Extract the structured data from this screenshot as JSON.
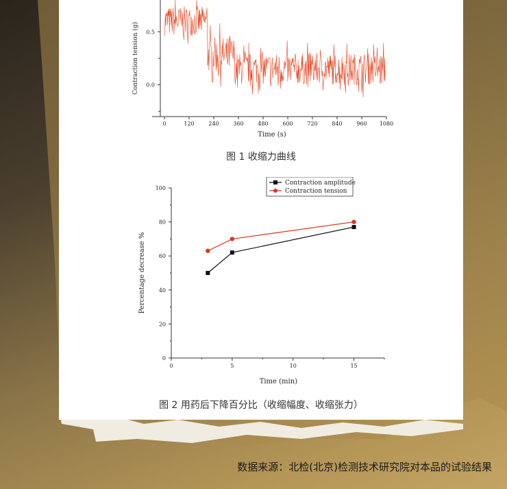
{
  "chart_data": [
    {
      "type": "line",
      "ylabel": "Contraction tension (g)",
      "xlabel": "Time (s)",
      "x_ticks": [
        0,
        120,
        240,
        360,
        480,
        600,
        720,
        840,
        960,
        1080
      ],
      "y_ticks": [
        "0.5",
        "0.0"
      ],
      "y_tick_values": [
        0.5,
        0.0
      ],
      "xlim": [
        -20,
        1080
      ],
      "ylim": [
        -0.3,
        0.8
      ],
      "series": [
        {
          "color": "#e8401c",
          "segments": [
            {
              "x_start": 0,
              "x_end": 210,
              "mean": 0.6,
              "noise": 0.14
            },
            {
              "x_start": 210,
              "x_end": 340,
              "mean": 0.28,
              "noise": 0.17
            },
            {
              "x_start": 340,
              "x_end": 1075,
              "mean": 0.15,
              "noise": 0.15
            }
          ]
        }
      ],
      "caption": "图 1 收缩力曲线"
    },
    {
      "type": "line",
      "xlabel": "Time (min)",
      "ylabel": "Percentage decrease %",
      "xlim": [
        0,
        17.5
      ],
      "ylim": [
        0,
        100
      ],
      "x_ticks": [
        0,
        5,
        10,
        15
      ],
      "y_ticks": [
        0,
        20,
        40,
        60,
        80,
        100
      ],
      "series": [
        {
          "name": "Contraction amplitude",
          "color": "#111111",
          "marker": "square",
          "x": [
            3,
            5,
            15
          ],
          "y": [
            50,
            62,
            77
          ]
        },
        {
          "name": "Contraction tension",
          "color": "#d9381e",
          "marker": "circle",
          "x": [
            3,
            5,
            15
          ],
          "y": [
            63,
            70,
            80
          ]
        }
      ],
      "legend_position": "top-right",
      "caption": "图 2 用药后下降百分比（收缩幅度、收缩张力）"
    }
  ],
  "source_note": "数据来源：北检(北京)检测技术研究院对本品的试验结果"
}
